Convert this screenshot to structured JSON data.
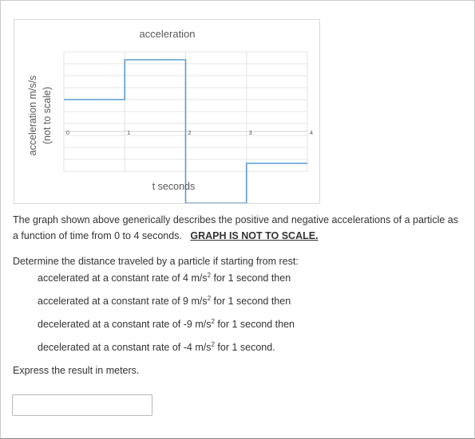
{
  "chart_data": {
    "type": "line",
    "title": "acceleration",
    "xlabel": "t seconds",
    "ylabel_lines": [
      "acceleration m/s/s",
      "(not to scale)"
    ],
    "x_tick_labels": [
      "0",
      "1",
      "2",
      "3",
      "4"
    ],
    "xlim": [
      0,
      4
    ],
    "ylim": [
      -5,
      10
    ],
    "grid": true,
    "series": [
      {
        "x": [
          0,
          1,
          1,
          2,
          2,
          3,
          3,
          4
        ],
        "y": [
          4,
          4,
          9,
          9,
          -9,
          -9,
          -4,
          -4
        ],
        "color": "#5b9bd5"
      }
    ]
  },
  "question": {
    "intro_1": "The graph shown above generically describes the positive and negative accelerations of a particle as a function of time from 0 to 4 seconds.",
    "intro_emphasis": "GRAPH IS NOT TO SCALE.",
    "determine": "Determine the distance traveled by a particle if starting from rest:",
    "steps": [
      {
        "prefix": "accelerated at a constant rate of 4 m/s",
        "sup": "2",
        "suffix": " for 1 second then"
      },
      {
        "prefix": "accelerated at a constant rate of 9 m/s",
        "sup": "2",
        "suffix": " for 1 second then"
      },
      {
        "prefix": "decelerated at a constant rate of -9 m/s",
        "sup": "2",
        "suffix": " for 1 second then"
      },
      {
        "prefix": "decelerated at a constant rate of -4 m/s",
        "sup": "2",
        "suffix": " for 1 second."
      }
    ],
    "express": "Express the result in meters."
  },
  "answer": {
    "value": ""
  }
}
